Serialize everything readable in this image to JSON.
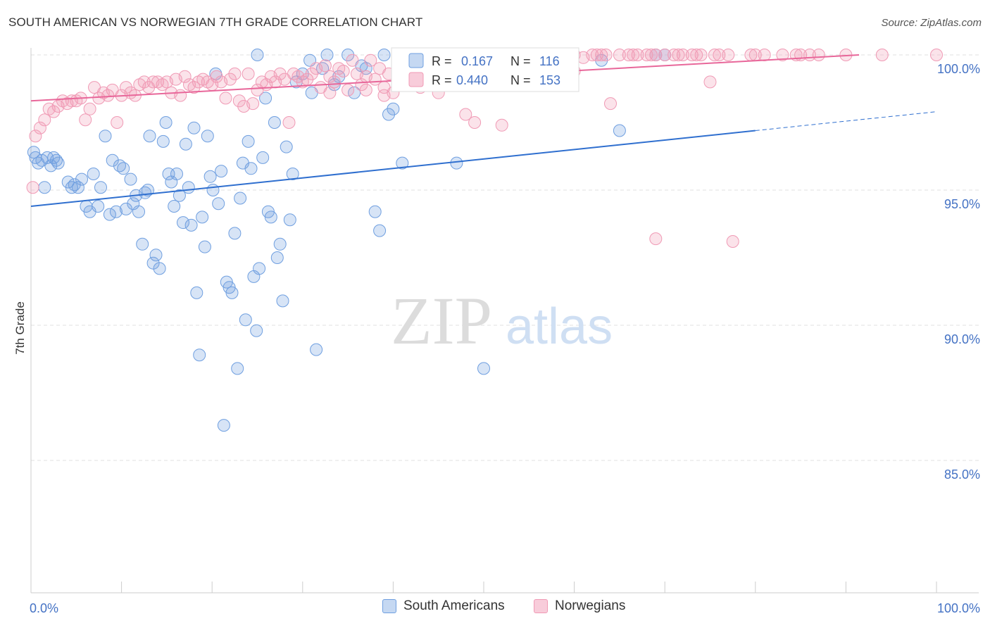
{
  "title": "SOUTH AMERICAN VS NORWEGIAN 7TH GRADE CORRELATION CHART",
  "source": "Source: ZipAtlas.com",
  "watermark": {
    "part1": "ZIP",
    "part2": "atlas"
  },
  "legend_box": {
    "rows": [
      {
        "r_label": "R =",
        "r_value": "0.167",
        "n_label": "N =",
        "n_value": "116",
        "color": "#6f9fe0"
      },
      {
        "r_label": "R =",
        "r_value": "0.440",
        "n_label": "N =",
        "n_value": "153",
        "color": "#f09ab5"
      }
    ]
  },
  "bottom_legend": [
    {
      "label": "South Americans",
      "color": "#6f9fe0"
    },
    {
      "label": "Norwegians",
      "color": "#f09ab5"
    }
  ],
  "chart_data": {
    "type": "scatter",
    "ylabel": "7th Grade",
    "xlim": [
      0,
      100
    ],
    "ylim": [
      80.5,
      100.8
    ],
    "x_tick_labels": [
      "0.0%",
      "100.0%"
    ],
    "y_ticks": [
      {
        "value": 100,
        "label": "100.0%"
      },
      {
        "value": 95,
        "label": "95.0%"
      },
      {
        "value": 90,
        "label": "90.0%"
      },
      {
        "value": 85,
        "label": "85.0%"
      }
    ],
    "grid": "horizontal dashed",
    "legend_placement": "top-center",
    "series": [
      {
        "name": "South Americans",
        "color": "#6f9fe0",
        "trend": {
          "x0": 0,
          "y0": 94.4,
          "x1": 80,
          "y1": 97.2,
          "dashed_to_x": 100,
          "dashed_to_y": 97.9
        },
        "points": [
          [
            0.3,
            96.4
          ],
          [
            0.5,
            96.2
          ],
          [
            0.8,
            96.0
          ],
          [
            1.2,
            96.1
          ],
          [
            1.5,
            95.1
          ],
          [
            1.8,
            96.2
          ],
          [
            2.2,
            95.9
          ],
          [
            2.5,
            96.2
          ],
          [
            2.8,
            96.1
          ],
          [
            3.0,
            96.0
          ],
          [
            4.1,
            95.3
          ],
          [
            4.5,
            95.1
          ],
          [
            4.8,
            95.2
          ],
          [
            5.2,
            95.1
          ],
          [
            5.6,
            95.4
          ],
          [
            6.1,
            94.4
          ],
          [
            6.5,
            94.2
          ],
          [
            6.9,
            95.6
          ],
          [
            7.4,
            94.4
          ],
          [
            7.7,
            95.1
          ],
          [
            8.2,
            97.0
          ],
          [
            8.7,
            94.1
          ],
          [
            9.0,
            96.1
          ],
          [
            9.4,
            94.2
          ],
          [
            9.8,
            95.9
          ],
          [
            10.2,
            95.8
          ],
          [
            10.5,
            94.3
          ],
          [
            11.0,
            95.4
          ],
          [
            11.3,
            94.5
          ],
          [
            11.6,
            94.8
          ],
          [
            11.9,
            94.2
          ],
          [
            12.3,
            93.0
          ],
          [
            12.6,
            94.9
          ],
          [
            12.9,
            95.0
          ],
          [
            13.1,
            97.0
          ],
          [
            13.5,
            92.3
          ],
          [
            13.8,
            92.6
          ],
          [
            14.2,
            92.1
          ],
          [
            14.6,
            96.8
          ],
          [
            14.9,
            97.5
          ],
          [
            15.2,
            95.6
          ],
          [
            15.5,
            95.3
          ],
          [
            15.8,
            94.4
          ],
          [
            16.1,
            95.6
          ],
          [
            16.4,
            94.8
          ],
          [
            16.8,
            93.8
          ],
          [
            17.1,
            96.7
          ],
          [
            17.4,
            95.1
          ],
          [
            17.7,
            93.7
          ],
          [
            18.0,
            97.3
          ],
          [
            18.3,
            91.2
          ],
          [
            18.6,
            88.9
          ],
          [
            18.9,
            94.0
          ],
          [
            19.2,
            92.9
          ],
          [
            19.5,
            97.0
          ],
          [
            19.8,
            95.5
          ],
          [
            20.1,
            95.0
          ],
          [
            20.4,
            99.3
          ],
          [
            20.7,
            94.5
          ],
          [
            21.0,
            95.7
          ],
          [
            21.3,
            86.3
          ],
          [
            21.6,
            91.6
          ],
          [
            21.9,
            91.4
          ],
          [
            22.2,
            91.2
          ],
          [
            22.5,
            93.4
          ],
          [
            22.8,
            88.4
          ],
          [
            23.1,
            94.7
          ],
          [
            23.4,
            96.0
          ],
          [
            23.7,
            90.2
          ],
          [
            24.0,
            96.8
          ],
          [
            24.3,
            95.8
          ],
          [
            24.6,
            91.8
          ],
          [
            24.9,
            89.8
          ],
          [
            25.2,
            92.1
          ],
          [
            25.6,
            96.2
          ],
          [
            25.9,
            98.4
          ],
          [
            26.2,
            94.2
          ],
          [
            26.5,
            94.0
          ],
          [
            26.9,
            97.5
          ],
          [
            27.2,
            92.5
          ],
          [
            27.5,
            93.0
          ],
          [
            27.8,
            90.9
          ],
          [
            28.2,
            96.6
          ],
          [
            28.6,
            93.9
          ],
          [
            28.9,
            95.6
          ],
          [
            29.3,
            99.0
          ],
          [
            30.0,
            99.3
          ],
          [
            31.0,
            98.6
          ],
          [
            31.5,
            89.1
          ],
          [
            32.2,
            99.5
          ],
          [
            32.7,
            100.0
          ],
          [
            33.5,
            98.9
          ],
          [
            34.0,
            99.2
          ],
          [
            35.0,
            100.0
          ],
          [
            35.7,
            98.6
          ],
          [
            36.5,
            99.6
          ],
          [
            38.0,
            94.2
          ],
          [
            38.5,
            93.5
          ],
          [
            39.0,
            100.0
          ],
          [
            39.5,
            97.8
          ],
          [
            40.0,
            98.0
          ],
          [
            41.0,
            96.0
          ],
          [
            47.0,
            96.0
          ],
          [
            50.0,
            88.4
          ],
          [
            56.5,
            99.7
          ],
          [
            58.2,
            100.0
          ],
          [
            63.0,
            99.8
          ],
          [
            65.0,
            97.2
          ],
          [
            69.0,
            100.0
          ],
          [
            70.0,
            100.0
          ],
          [
            25.0,
            100.0
          ],
          [
            30.8,
            99.8
          ],
          [
            37.0,
            99.5
          ],
          [
            40.5,
            100.0
          ],
          [
            42.0,
            100.0
          ],
          [
            44.5,
            99.8
          ]
        ]
      },
      {
        "name": "Norwegians",
        "color": "#f09ab5",
        "trend": {
          "x0": 0,
          "y0": 98.3,
          "x1": 100,
          "y1": 100.0
        },
        "points": [
          [
            0.2,
            95.1
          ],
          [
            0.5,
            97.0
          ],
          [
            1.0,
            97.3
          ],
          [
            1.5,
            97.6
          ],
          [
            2.0,
            98.0
          ],
          [
            2.5,
            97.9
          ],
          [
            3.0,
            98.1
          ],
          [
            3.5,
            98.3
          ],
          [
            4.0,
            98.2
          ],
          [
            4.5,
            98.3
          ],
          [
            5.0,
            98.3
          ],
          [
            5.5,
            98.4
          ],
          [
            6.0,
            97.6
          ],
          [
            6.5,
            98.0
          ],
          [
            7.0,
            98.8
          ],
          [
            7.5,
            98.4
          ],
          [
            8.0,
            98.6
          ],
          [
            8.5,
            98.5
          ],
          [
            9.0,
            98.7
          ],
          [
            9.5,
            97.5
          ],
          [
            10.0,
            98.5
          ],
          [
            10.5,
            98.8
          ],
          [
            11.0,
            98.6
          ],
          [
            11.5,
            98.5
          ],
          [
            12.0,
            98.9
          ],
          [
            12.5,
            99.0
          ],
          [
            13.0,
            98.8
          ],
          [
            13.5,
            99.0
          ],
          [
            14.0,
            99.0
          ],
          [
            14.5,
            98.9
          ],
          [
            15.0,
            99.0
          ],
          [
            15.5,
            98.6
          ],
          [
            16.0,
            99.1
          ],
          [
            16.5,
            98.5
          ],
          [
            17.0,
            99.2
          ],
          [
            17.5,
            98.9
          ],
          [
            18.0,
            98.8
          ],
          [
            18.5,
            99.0
          ],
          [
            19.0,
            99.1
          ],
          [
            19.5,
            99.0
          ],
          [
            20.0,
            98.9
          ],
          [
            20.5,
            99.2
          ],
          [
            21.0,
            99.0
          ],
          [
            21.5,
            98.4
          ],
          [
            22.0,
            99.1
          ],
          [
            22.5,
            99.3
          ],
          [
            23.0,
            98.3
          ],
          [
            23.5,
            98.1
          ],
          [
            24.0,
            99.3
          ],
          [
            24.5,
            98.2
          ],
          [
            25.0,
            98.7
          ],
          [
            25.5,
            99.0
          ],
          [
            26.0,
            98.9
          ],
          [
            26.5,
            99.2
          ],
          [
            27.0,
            99.0
          ],
          [
            27.5,
            99.3
          ],
          [
            28.0,
            99.1
          ],
          [
            28.5,
            97.5
          ],
          [
            29.0,
            99.3
          ],
          [
            29.5,
            99.2
          ],
          [
            30.0,
            99.0
          ],
          [
            30.5,
            99.1
          ],
          [
            31.0,
            99.3
          ],
          [
            31.5,
            99.5
          ],
          [
            32.0,
            98.8
          ],
          [
            32.5,
            99.6
          ],
          [
            33.0,
            99.2
          ],
          [
            33.5,
            99.0
          ],
          [
            34.0,
            99.5
          ],
          [
            34.5,
            99.4
          ],
          [
            35.0,
            98.7
          ],
          [
            35.5,
            99.8
          ],
          [
            36.0,
            99.3
          ],
          [
            36.5,
            98.9
          ],
          [
            37.0,
            99.2
          ],
          [
            37.5,
            99.8
          ],
          [
            38.0,
            99.1
          ],
          [
            38.5,
            99.5
          ],
          [
            39.0,
            98.8
          ],
          [
            39.5,
            99.3
          ],
          [
            40.0,
            98.6
          ],
          [
            40.5,
            99.7
          ],
          [
            41.0,
            99.4
          ],
          [
            41.5,
            99.5
          ],
          [
            42.0,
            99.5
          ],
          [
            43.0,
            99.6
          ],
          [
            44.0,
            99.4
          ],
          [
            45.0,
            99.7
          ],
          [
            46.0,
            99.3
          ],
          [
            47.0,
            99.6
          ],
          [
            48.0,
            99.8
          ],
          [
            49.0,
            97.5
          ],
          [
            50.0,
            99.8
          ],
          [
            51.0,
            99.5
          ],
          [
            52.0,
            99.7
          ],
          [
            53.0,
            99.9
          ],
          [
            54.0,
            99.8
          ],
          [
            55.0,
            99.6
          ],
          [
            56.0,
            99.9
          ],
          [
            57.0,
            99.8
          ],
          [
            58.0,
            100.0
          ],
          [
            59.0,
            99.7
          ],
          [
            60.0,
            100.0
          ],
          [
            61.0,
            99.9
          ],
          [
            62.0,
            100.0
          ],
          [
            63.0,
            100.0
          ],
          [
            63.5,
            100.0
          ],
          [
            64.0,
            98.2
          ],
          [
            65.0,
            100.0
          ],
          [
            66.0,
            100.0
          ],
          [
            67.0,
            100.0
          ],
          [
            68.0,
            100.0
          ],
          [
            69.0,
            100.0
          ],
          [
            70.0,
            100.0
          ],
          [
            71.0,
            100.0
          ],
          [
            72.0,
            100.0
          ],
          [
            73.0,
            100.0
          ],
          [
            74.0,
            100.0
          ],
          [
            75.0,
            99.0
          ],
          [
            76.0,
            100.0
          ],
          [
            77.0,
            100.0
          ],
          [
            80.0,
            100.0
          ],
          [
            81.0,
            100.0
          ],
          [
            83.0,
            100.0
          ],
          [
            85.0,
            100.0
          ],
          [
            87.0,
            100.0
          ],
          [
            94.0,
            100.0
          ],
          [
            100.0,
            100.0
          ],
          [
            69.0,
            93.2
          ],
          [
            77.5,
            93.1
          ],
          [
            48.0,
            97.8
          ],
          [
            52.0,
            97.4
          ],
          [
            45.0,
            98.6
          ],
          [
            43.0,
            98.8
          ],
          [
            41.0,
            98.9
          ],
          [
            39.0,
            98.5
          ],
          [
            37.0,
            98.7
          ],
          [
            33.0,
            98.6
          ],
          [
            57.0,
            99.0
          ],
          [
            60.0,
            99.4
          ],
          [
            44.0,
            99.9
          ],
          [
            46.5,
            100.0
          ],
          [
            62.5,
            100.0
          ],
          [
            66.5,
            100.0
          ],
          [
            68.5,
            100.0
          ],
          [
            71.5,
            100.0
          ],
          [
            73.5,
            100.0
          ],
          [
            75.5,
            100.0
          ],
          [
            79.5,
            100.0
          ],
          [
            84.5,
            100.0
          ],
          [
            86.0,
            100.0
          ],
          [
            90.0,
            100.0
          ],
          [
            56.5,
            100.0
          ]
        ]
      }
    ]
  }
}
